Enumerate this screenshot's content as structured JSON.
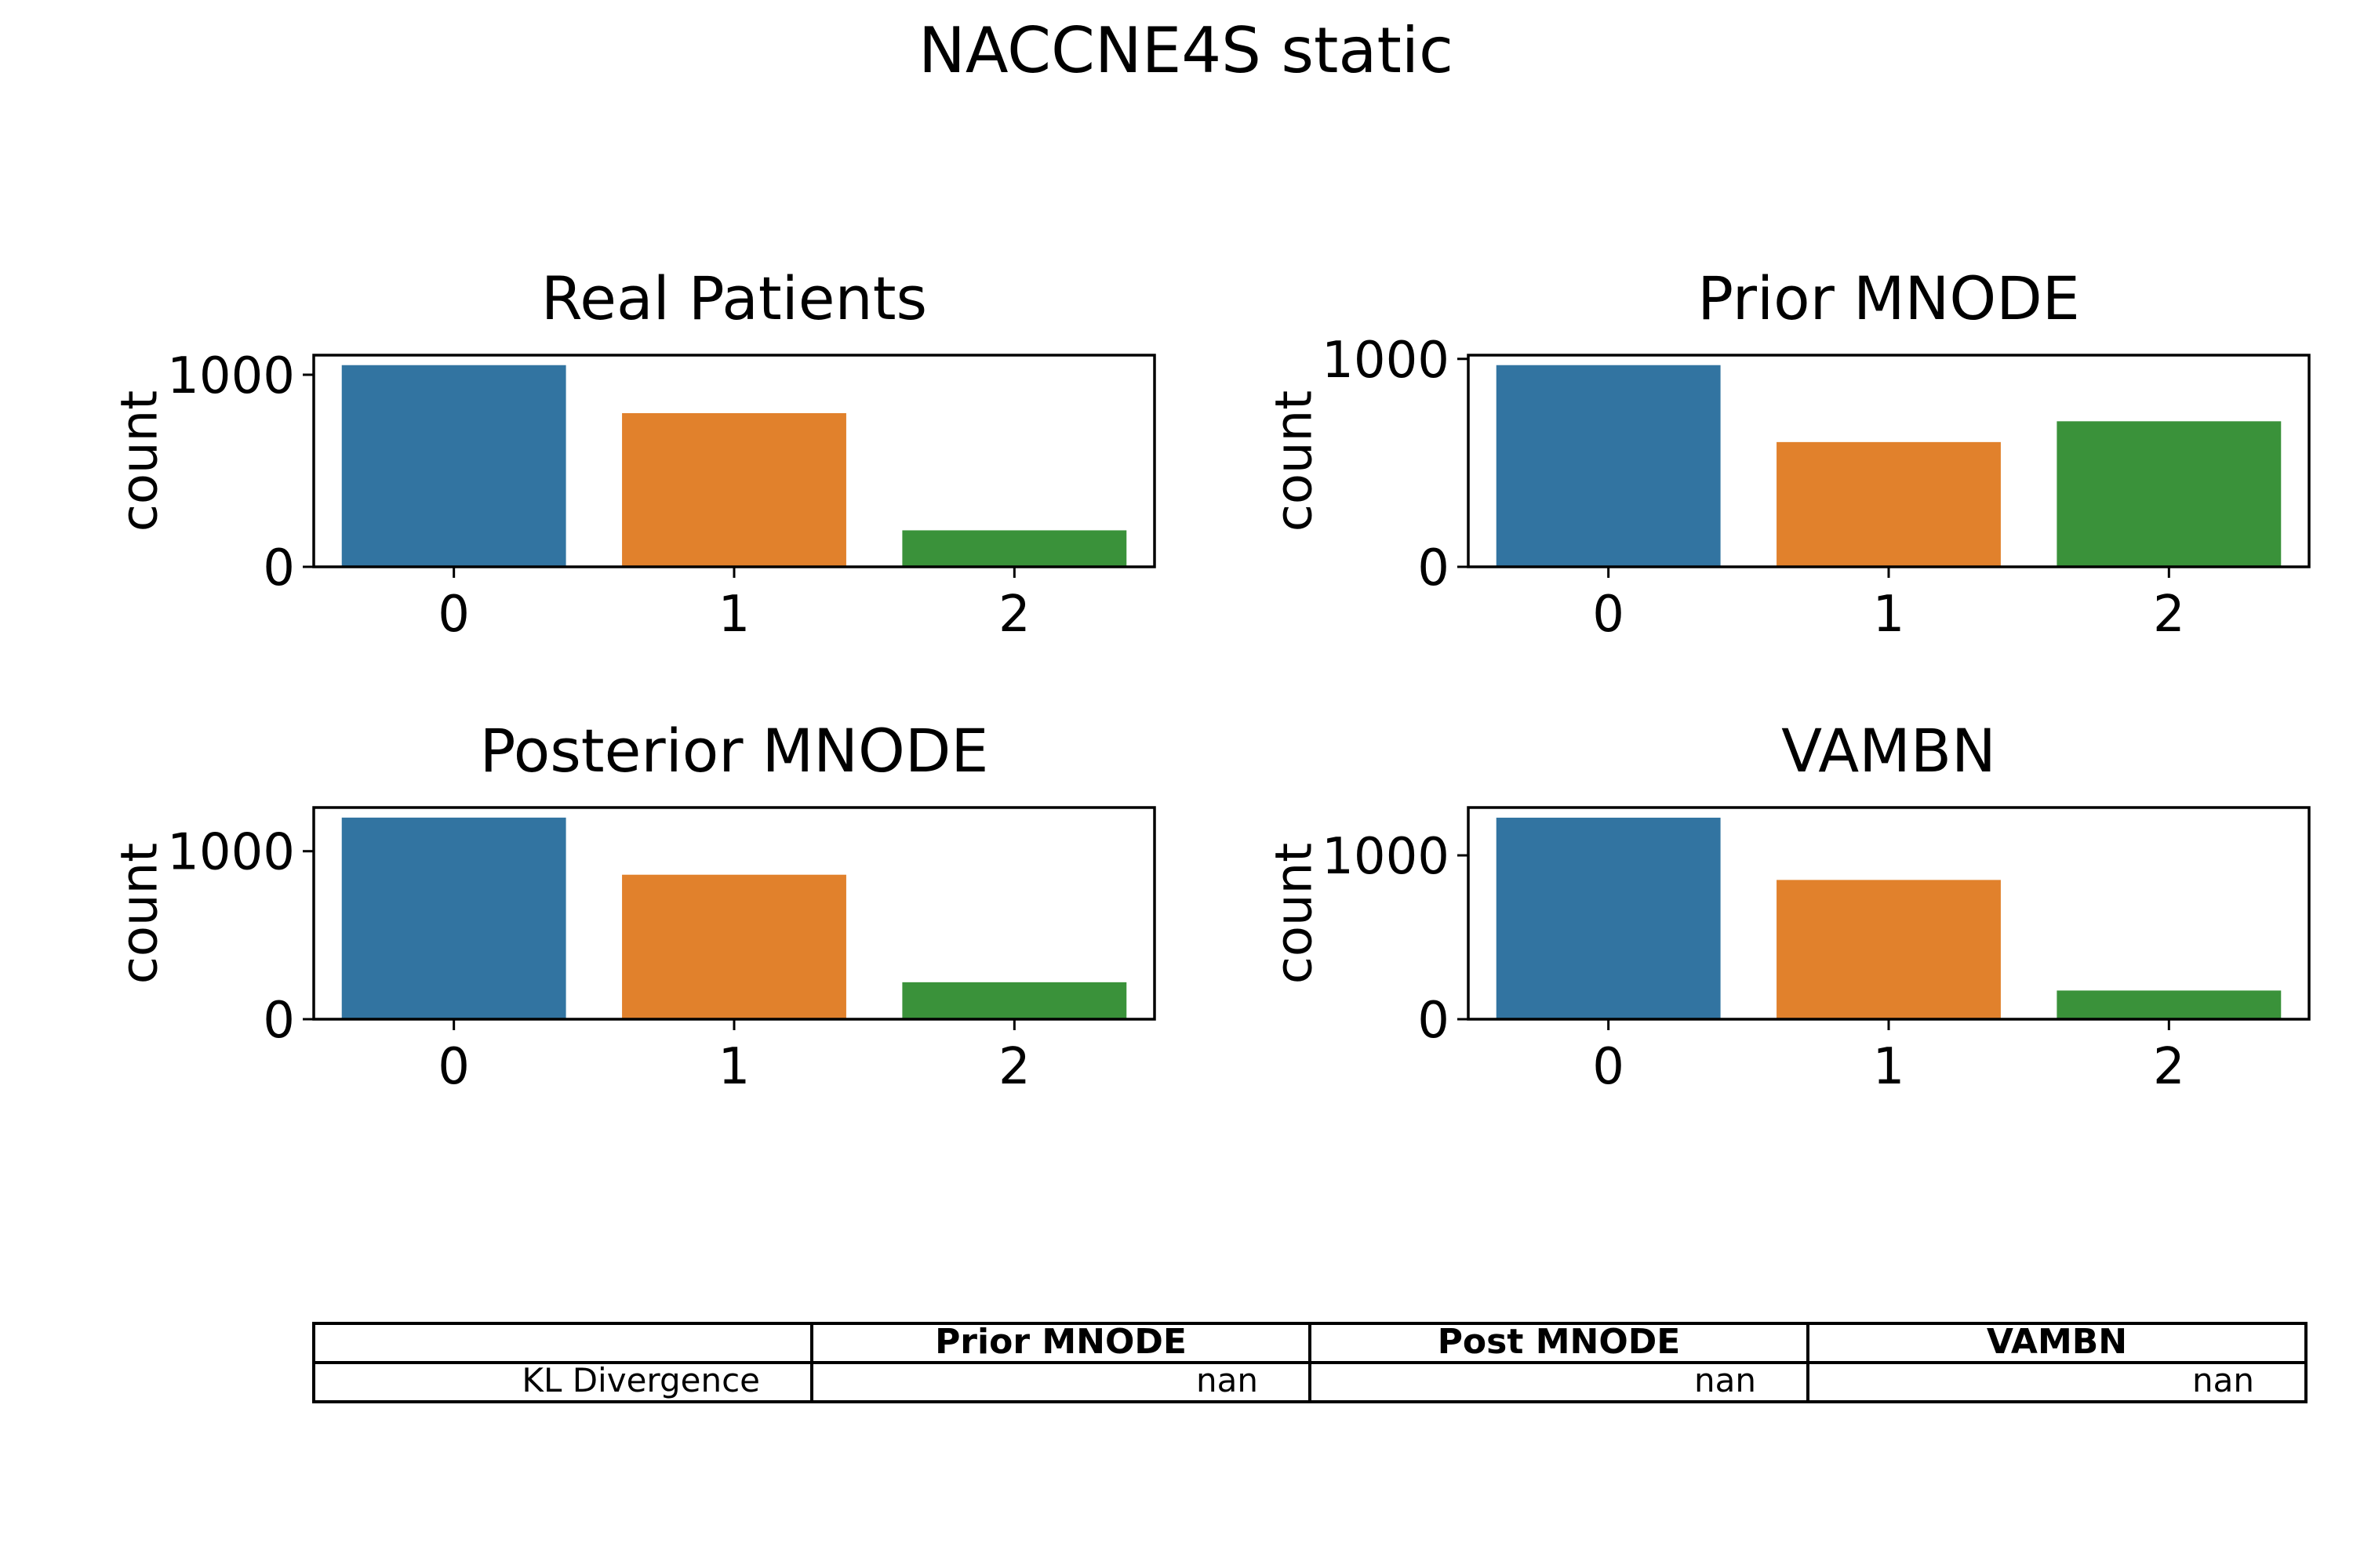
{
  "figure": {
    "title": "NACCNE4S static"
  },
  "chart_data": [
    {
      "type": "bar",
      "title": "Real Patients",
      "xlabel": "",
      "ylabel": "count",
      "categories": [
        "0",
        "1",
        "2"
      ],
      "values": [
        1050,
        800,
        190
      ],
      "ylim": [
        0,
        1102
      ],
      "yticks": [
        "0",
        "1000"
      ],
      "colors": [
        "#3274a1",
        "#e1812c",
        "#3a923a"
      ],
      "grid": false
    },
    {
      "type": "bar",
      "title": "Prior MNODE",
      "xlabel": "",
      "ylabel": "count",
      "categories": [
        "0",
        "1",
        "2"
      ],
      "values": [
        970,
        600,
        700
      ],
      "ylim": [
        0,
        1018
      ],
      "yticks": [
        "0",
        "1000"
      ],
      "colors": [
        "#3274a1",
        "#e1812c",
        "#3a923a"
      ],
      "grid": false
    },
    {
      "type": "bar",
      "title": "Posterior MNODE",
      "xlabel": "",
      "ylabel": "count",
      "categories": [
        "0",
        "1",
        "2"
      ],
      "values": [
        1200,
        860,
        220
      ],
      "ylim": [
        0,
        1260
      ],
      "yticks": [
        "0",
        "1000"
      ],
      "colors": [
        "#3274a1",
        "#e1812c",
        "#3a923a"
      ],
      "grid": false
    },
    {
      "type": "bar",
      "title": "VAMBN",
      "xlabel": "",
      "ylabel": "count",
      "categories": [
        "0",
        "1",
        "2"
      ],
      "values": [
        1230,
        850,
        175
      ],
      "ylim": [
        0,
        1292
      ],
      "yticks": [
        "0",
        "1000"
      ],
      "colors": [
        "#3274a1",
        "#e1812c",
        "#3a923a"
      ],
      "grid": false
    },
    {
      "type": "table",
      "columns": [
        "",
        "Prior MNODE",
        "Post MNODE",
        "VAMBN"
      ],
      "rows": [
        [
          "KL Divergence",
          "nan",
          "nan",
          "nan"
        ]
      ]
    }
  ]
}
